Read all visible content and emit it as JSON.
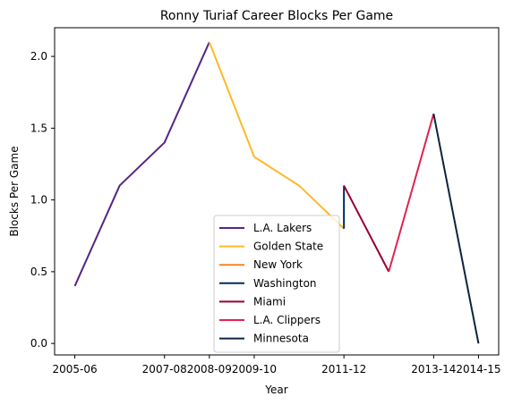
{
  "chart_data": {
    "type": "line",
    "title": "Ronny Turiaf Career Blocks Per Game",
    "xlabel": "Year",
    "ylabel": "Blocks Per Game",
    "x_ticks": [
      "2005-06",
      "2007-08",
      "2008-09",
      "2009-10",
      "2011-12",
      "2013-14",
      "2014-15"
    ],
    "xlim": [
      "2005-06",
      "2014-15"
    ],
    "ylim": [
      -0.08,
      2.2
    ],
    "y_ticks": [
      0.0,
      0.5,
      1.0,
      1.5,
      2.0
    ],
    "y_tick_labels": [
      "0.0",
      "0.5",
      "1.0",
      "1.5",
      "2.0"
    ],
    "grid": false,
    "legend_position": "lower-center",
    "series": [
      {
        "name": "L.A. Lakers",
        "color": "#552583",
        "points": [
          {
            "x": "2005-06",
            "y": 0.4
          },
          {
            "x": "2006-07",
            "y": 1.1
          },
          {
            "x": "2007-08",
            "y": 1.4
          },
          {
            "x": "2008-09",
            "y": 2.1
          }
        ]
      },
      {
        "name": "Golden State",
        "color": "#FDB927",
        "points": [
          {
            "x": "2008-09",
            "y": 2.1
          },
          {
            "x": "2009-10",
            "y": 1.3
          },
          {
            "x": "2010-11",
            "y": 1.1
          },
          {
            "x": "2011-12",
            "y": 0.8
          }
        ]
      },
      {
        "name": "New York",
        "color": "#F58426",
        "points": []
      },
      {
        "name": "Washington",
        "color": "#002B5C",
        "points": [
          {
            "x": "2011-12",
            "y": 1.1
          },
          {
            "x": "2011-12",
            "y": 0.8
          }
        ]
      },
      {
        "name": "Miami",
        "color": "#98002E",
        "points": [
          {
            "x": "2011-12",
            "y": 1.1
          },
          {
            "x": "2012-13",
            "y": 0.5
          }
        ]
      },
      {
        "name": "L.A. Clippers",
        "color": "#E0234E",
        "points": [
          {
            "x": "2012-13",
            "y": 0.5
          },
          {
            "x": "2013-14",
            "y": 1.6
          }
        ]
      },
      {
        "name": "Minnesota",
        "color": "#0C2340",
        "points": [
          {
            "x": "2013-14",
            "y": 1.6
          },
          {
            "x": "2014-15",
            "y": 0.0
          }
        ]
      }
    ]
  }
}
